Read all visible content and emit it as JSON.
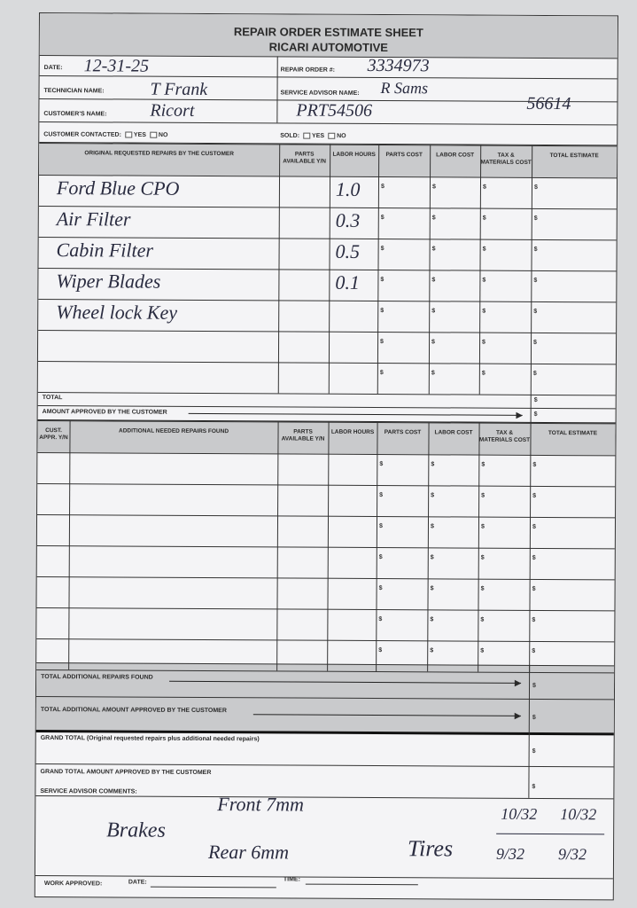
{
  "header": {
    "title": "REPAIR ORDER ESTIMATE SHEET",
    "company": "RICARI AUTOMOTIVE"
  },
  "info": {
    "date_label": "DATE:",
    "date_value": "12-31-25",
    "repair_order_label": "REPAIR ORDER #:",
    "repair_order_value": "3334973",
    "technician_label": "TECHNICIAN NAME:",
    "technician_value": "T Frank",
    "advisor_label": "SERVICE ADVISOR NAME:",
    "advisor_value": "R Sams",
    "customer_label": "CUSTOMER'S NAME:",
    "customer_value": "Ricort",
    "vehicle_note": "PRT54506",
    "mileage_note": "56614",
    "contacted_label": "CUSTOMER CONTACTED:",
    "sold_label": "SOLD:",
    "yes": "YES",
    "no": "NO"
  },
  "columns": {
    "original": "ORIGINAL REQUESTED REPAIRS BY THE CUSTOMER",
    "additional": "ADDITIONAL NEEDED REPAIRS FOUND",
    "cust_appr": "CUST. APPR. Y/N",
    "parts_avail": "PARTS AVAILABLE Y/N",
    "labor_hours": "LABOR HOURS",
    "parts_cost": "PARTS COST",
    "labor_cost": "LABOR COST",
    "tax": "TAX & MATERIALS COST",
    "total": "TOTAL ESTIMATE",
    "dollar": "$"
  },
  "original_repairs": [
    {
      "description": "Ford Blue CPO",
      "labor_hours": "1.0"
    },
    {
      "description": "Air Filter",
      "labor_hours": "0.3"
    },
    {
      "description": "Cabin Filter",
      "labor_hours": "0.5"
    },
    {
      "description": "Wiper Blades",
      "labor_hours": "0.1"
    },
    {
      "description": "Wheel lock Key",
      "labor_hours": ""
    },
    {
      "description": "",
      "labor_hours": ""
    },
    {
      "description": "",
      "labor_hours": ""
    }
  ],
  "totals": {
    "total": "TOTAL",
    "amount_approved": "AMOUNT APPROVED BY THE CUSTOMER",
    "total_additional": "TOTAL ADDITIONAL REPAIRS FOUND",
    "total_additional_approved": "TOTAL ADDITIONAL AMOUNT APPROVED BY THE CUSTOMER",
    "grand_total": "GRAND TOTAL (Original requested repairs plus additional needed repairs)",
    "grand_total_approved": "GRAND TOTAL AMOUNT APPROVED BY THE CUSTOMER"
  },
  "comments": {
    "label": "SERVICE ADVISOR COMMENTS:",
    "brakes": "Brakes",
    "front": "Front 7mm",
    "rear": "Rear 6mm",
    "tires": "Tires",
    "tire_front_left": "10/32",
    "tire_front_right": "10/32",
    "tire_rear_left": "9/32",
    "tire_rear_right": "9/32"
  },
  "footer": {
    "work_approved": "WORK APPROVED:",
    "date": "DATE:",
    "time": "TIME:"
  }
}
